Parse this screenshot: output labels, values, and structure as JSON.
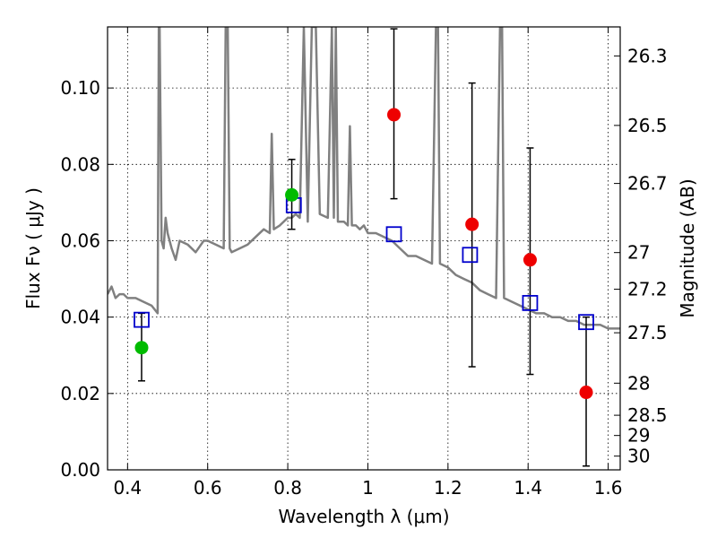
{
  "chart_data": {
    "type": "scatter",
    "xlabel": "Wavelength  λ (μm)",
    "ylabel": "Flux  Fν  ( μJy )",
    "ylabel_right": "Magnitude (AB)",
    "xlim": [
      0.35,
      1.63
    ],
    "ylim": [
      0.0,
      0.116
    ],
    "grid": true,
    "x_ticks": [
      0.4,
      0.6,
      0.8,
      1.0,
      1.2,
      1.4,
      1.6
    ],
    "x_tick_labels": [
      "0.4",
      "0.6",
      "0.8",
      "1",
      "1.2",
      "1.4",
      "1.6"
    ],
    "y_ticks": [
      0.0,
      0.02,
      0.04,
      0.06,
      0.08,
      0.1
    ],
    "y_tick_labels": [
      "0.00",
      "0.02",
      "0.04",
      "0.06",
      "0.08",
      "0.10"
    ],
    "right_ticks": [
      {
        "label": "26.3",
        "flux": 0.1084
      },
      {
        "label": "26.5",
        "flux": 0.0902
      },
      {
        "label": "26.7",
        "flux": 0.075
      },
      {
        "label": "27",
        "flux": 0.0569
      },
      {
        "label": "27.2",
        "flux": 0.0473
      },
      {
        "label": "27.5",
        "flux": 0.0359
      },
      {
        "label": "28",
        "flux": 0.0227
      },
      {
        "label": "28.5",
        "flux": 0.0143
      },
      {
        "label": "29",
        "flux": 0.009
      },
      {
        "label": "30",
        "flux": 0.0036
      }
    ],
    "series": [
      {
        "kind": "sed-model",
        "color": "#808080",
        "x": [
          0.35,
          0.36,
          0.37,
          0.38,
          0.39,
          0.4,
          0.42,
          0.44,
          0.46,
          0.475,
          0.478,
          0.48,
          0.485,
          0.49,
          0.495,
          0.5,
          0.51,
          0.52,
          0.53,
          0.55,
          0.57,
          0.59,
          0.6,
          0.62,
          0.64,
          0.645,
          0.65,
          0.655,
          0.66,
          0.68,
          0.7,
          0.72,
          0.74,
          0.755,
          0.76,
          0.765,
          0.78,
          0.8,
          0.81,
          0.82,
          0.83,
          0.84,
          0.85,
          0.86,
          0.87,
          0.88,
          0.9,
          0.91,
          0.915,
          0.92,
          0.925,
          0.94,
          0.95,
          0.955,
          0.96,
          0.97,
          0.98,
          0.99,
          1.0,
          1.02,
          1.04,
          1.06,
          1.08,
          1.1,
          1.12,
          1.14,
          1.16,
          1.17,
          1.175,
          1.18,
          1.2,
          1.22,
          1.24,
          1.26,
          1.28,
          1.3,
          1.32,
          1.33,
          1.335,
          1.34,
          1.36,
          1.38,
          1.4,
          1.42,
          1.44,
          1.46,
          1.48,
          1.5,
          1.52,
          1.54,
          1.56,
          1.58,
          1.6,
          1.63
        ],
        "y": [
          0.046,
          0.048,
          0.045,
          0.046,
          0.046,
          0.045,
          0.045,
          0.044,
          0.043,
          0.041,
          0.116,
          0.116,
          0.06,
          0.058,
          0.066,
          0.062,
          0.058,
          0.055,
          0.06,
          0.059,
          0.057,
          0.06,
          0.06,
          0.059,
          0.058,
          0.116,
          0.116,
          0.058,
          0.057,
          0.058,
          0.059,
          0.061,
          0.063,
          0.062,
          0.088,
          0.063,
          0.064,
          0.066,
          0.066,
          0.067,
          0.066,
          0.116,
          0.065,
          0.116,
          0.116,
          0.067,
          0.066,
          0.116,
          0.066,
          0.116,
          0.065,
          0.065,
          0.064,
          0.09,
          0.064,
          0.064,
          0.063,
          0.064,
          0.062,
          0.062,
          0.061,
          0.06,
          0.058,
          0.056,
          0.056,
          0.055,
          0.054,
          0.116,
          0.116,
          0.054,
          0.053,
          0.051,
          0.05,
          0.049,
          0.047,
          0.046,
          0.045,
          0.116,
          0.116,
          0.045,
          0.044,
          0.043,
          0.042,
          0.041,
          0.041,
          0.04,
          0.04,
          0.039,
          0.039,
          0.038,
          0.038,
          0.038,
          0.037,
          0.037
        ]
      },
      {
        "kind": "model-photometry",
        "marker": "open-square",
        "color": "#0000cc",
        "x": [
          0.435,
          0.815,
          1.065,
          1.255,
          1.405,
          1.545
        ],
        "y": [
          0.0393,
          0.0693,
          0.0617,
          0.0563,
          0.0437,
          0.0387
        ]
      },
      {
        "kind": "detections",
        "marker": "filled-circle",
        "color": "#00bb00",
        "x": [
          0.435,
          0.81
        ],
        "y": [
          0.032,
          0.072
        ],
        "yerr_low": [
          0.0233,
          0.063
        ],
        "yerr_high": [
          0.041,
          0.0813
        ]
      },
      {
        "kind": "detections",
        "marker": "filled-circle",
        "color": "#ee0000",
        "x": [
          1.065,
          1.26,
          1.405,
          1.545
        ],
        "y": [
          0.093,
          0.0643,
          0.055,
          0.0203
        ],
        "yerr_low": [
          0.071,
          0.027,
          0.025,
          0.001
        ],
        "yerr_high": [
          0.1155,
          0.1013,
          0.0843,
          0.04
        ]
      }
    ]
  }
}
